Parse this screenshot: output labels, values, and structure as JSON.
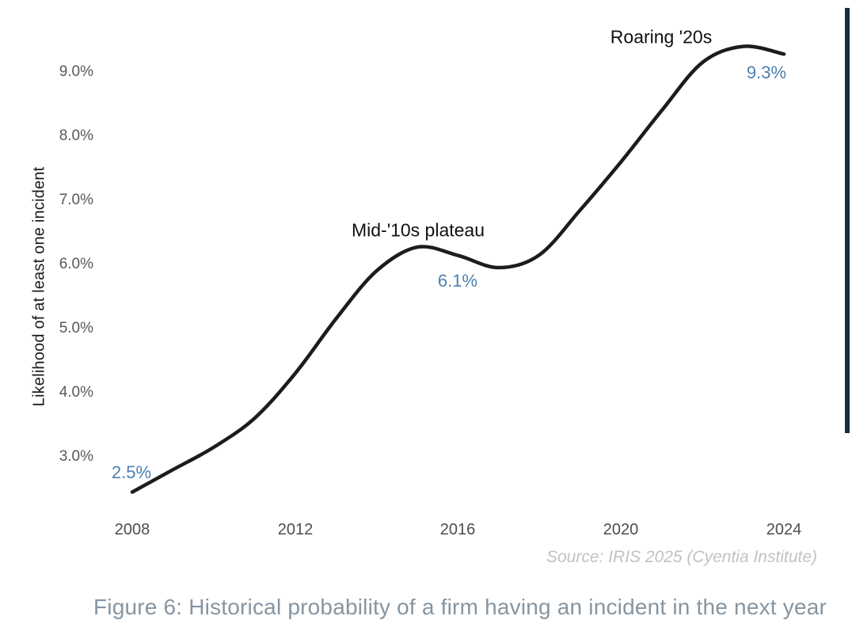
{
  "figure": {
    "caption": "Figure 6: Historical probability of a firm having an incident in the next year",
    "source": "Source: IRIS 2025 (Cyentia Institute)"
  },
  "chart_data": {
    "type": "line",
    "title": "",
    "xlabel": "",
    "ylabel": "Likelihood of at least one incident",
    "x": [
      2008,
      2009,
      2010,
      2011,
      2012,
      2013,
      2014,
      2015,
      2016,
      2017,
      2018,
      2019,
      2020,
      2021,
      2022,
      2023,
      2024
    ],
    "values": [
      2.45,
      2.8,
      3.15,
      3.6,
      4.3,
      5.15,
      5.9,
      6.27,
      6.14,
      5.95,
      6.15,
      6.85,
      7.6,
      8.4,
      9.15,
      9.4,
      9.28
    ],
    "unit": "%",
    "xlim": [
      2008,
      2024
    ],
    "ylim": [
      2.0,
      9.8
    ],
    "grid": false,
    "legend": "none",
    "line_color": "#1c1c1c",
    "accent_blue": "#4d80b0",
    "x_tick_labels": [
      "2008",
      "2012",
      "2016",
      "2020",
      "2024"
    ],
    "y_tick_labels": [
      "9.0%",
      "8.0%",
      "7.0%",
      "6.0%",
      "5.0%",
      "4.0%",
      "3.0%"
    ],
    "y_tick_values": [
      9.0,
      8.0,
      7.0,
      6.0,
      5.0,
      4.0,
      3.0
    ],
    "annotations": [
      {
        "text": "Roaring '20s",
        "x": 2021,
        "y": 9.9,
        "color": "#111111"
      },
      {
        "text": "Mid-'10s plateau",
        "x": 2015,
        "y": 6.7,
        "color": "#111111"
      },
      {
        "text": "9.3%",
        "x": 2023.6,
        "y": 9.0,
        "color": "#4d80b0"
      },
      {
        "text": "6.1%",
        "x": 2016,
        "y": 5.7,
        "color": "#4d80b0"
      },
      {
        "text": "2.5%",
        "x": 2008,
        "y": 2.8,
        "color": "#4d80b0"
      }
    ]
  }
}
